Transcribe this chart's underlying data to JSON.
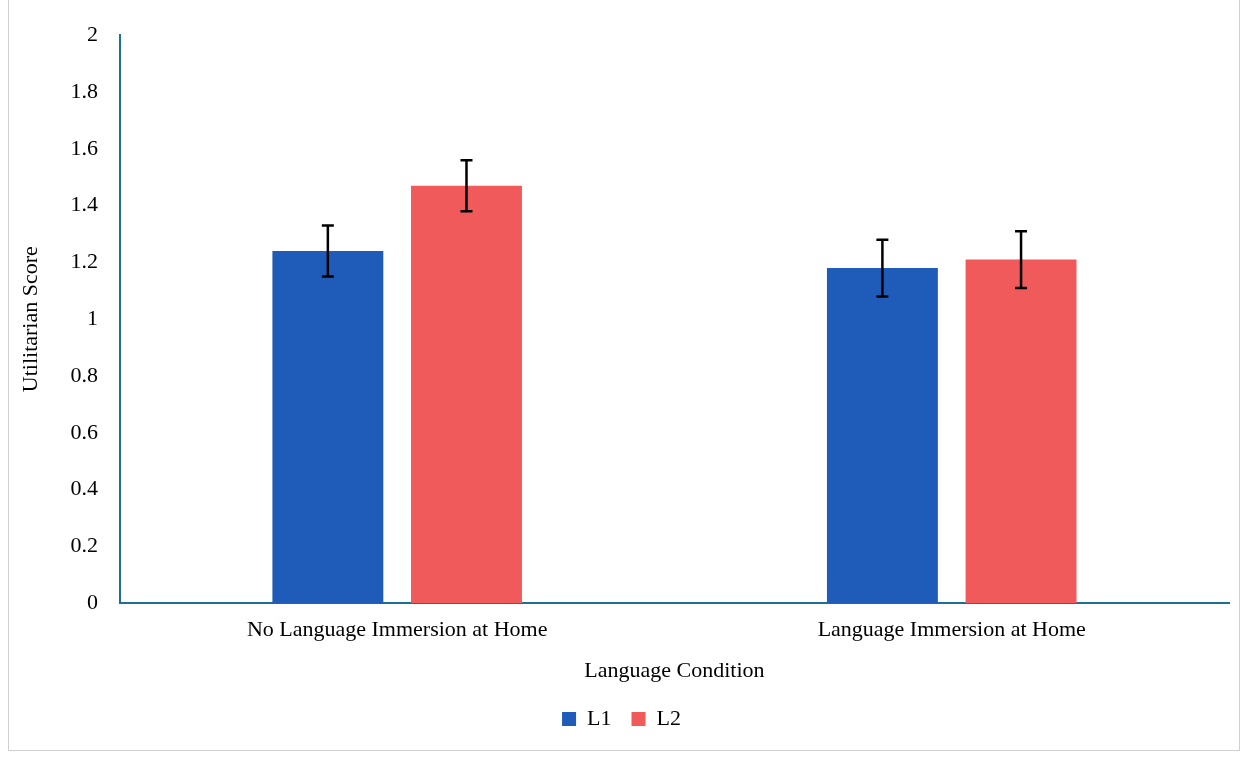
{
  "chart_data": {
    "type": "bar",
    "xlabel": "Language Condition",
    "ylabel": "Utilitarian Score",
    "categories": [
      "No Language Immersion at Home",
      "Language Immersion at Home"
    ],
    "series": [
      {
        "name": "L1",
        "color": "#1f5bb8",
        "values": [
          1.24,
          1.18
        ],
        "errors": [
          0.09,
          0.1
        ]
      },
      {
        "name": "L2",
        "color": "#f05a5a",
        "values": [
          1.47,
          1.21
        ],
        "errors": [
          0.09,
          0.1
        ]
      }
    ],
    "ylim": [
      0,
      2
    ],
    "yticks": [
      0,
      0.2,
      0.4,
      0.6,
      0.8,
      1,
      1.2,
      1.4,
      1.6,
      1.8,
      2
    ],
    "grid": false,
    "legend": "bottom"
  }
}
